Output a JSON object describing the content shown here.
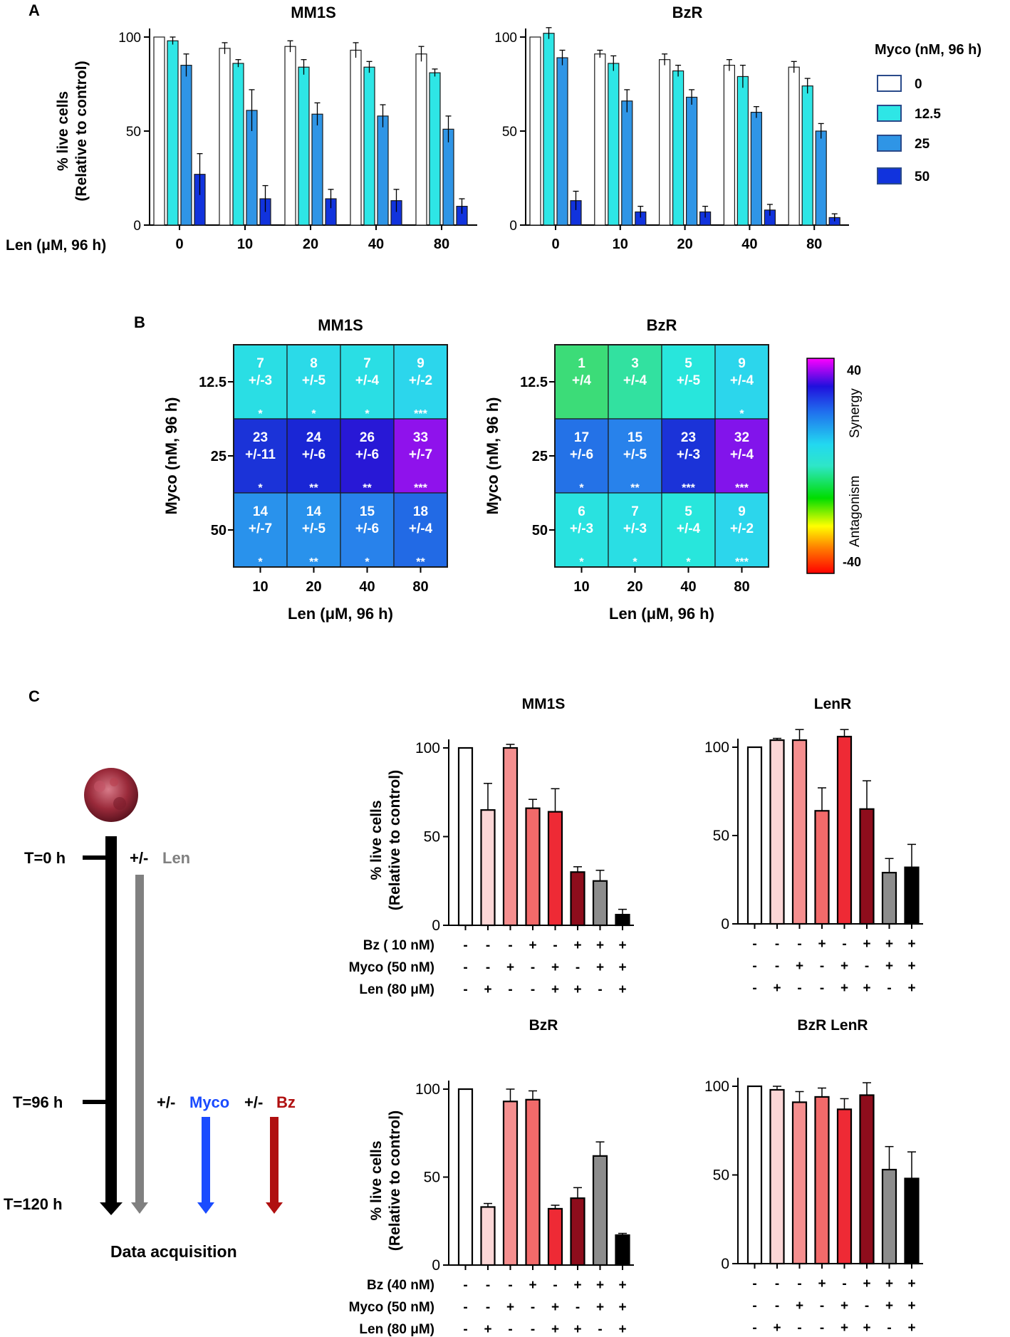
{
  "panel_labels": {
    "a": "A",
    "b": "B",
    "c": "C"
  },
  "colors": {
    "myco": [
      "#ffffff",
      "#2ee6e6",
      "#2f95e6",
      "#1133dd"
    ],
    "conditions": [
      "#ffffff",
      "#fbd6d6",
      "#f58f8f",
      "#f26a6a",
      "#ee2a35",
      "#8e0d1c",
      "#8c8c8c",
      "#000000"
    ],
    "arrow_len": "#808080",
    "arrow_myco": "#1a4bff",
    "arrow_bz": "#b01010",
    "text_len": "#808080",
    "text_myco": "#1a4bff",
    "text_bz": "#b01010"
  },
  "legend_a": {
    "title": "Myco (nM, 96 h)",
    "entries": [
      "0",
      "12.5",
      "25",
      "50"
    ]
  },
  "colorbar": {
    "max_label": "40",
    "min_label": "-40",
    "synergy_label": "Synergy",
    "antagonism_label": "Antagonism"
  },
  "timeline": {
    "t0": "T=0 h",
    "t96": "T=96 h",
    "t120": "T=120 h",
    "plusminus": "+/-",
    "len": "Len",
    "myco": "Myco",
    "bz": "Bz",
    "acquisition": "Data acquisition"
  },
  "chart_data": [
    {
      "id": "A-MM1S",
      "type": "bar",
      "title": "MM1S",
      "xlabel": "Len (μM, 96 h)",
      "ylabel": "% live cells",
      "ylabel2": "(Relative to control)",
      "ylim": [
        0,
        100
      ],
      "yticks": [
        0,
        50,
        100
      ],
      "categories": [
        "0",
        "10",
        "20",
        "40",
        "80"
      ],
      "series": [
        {
          "name": "0",
          "values": [
            100,
            94,
            95,
            93,
            91
          ],
          "errors": [
            0,
            3,
            3,
            4,
            4
          ]
        },
        {
          "name": "12.5",
          "values": [
            98,
            86,
            84,
            84,
            81
          ],
          "errors": [
            2,
            2,
            4,
            3,
            2
          ]
        },
        {
          "name": "25",
          "values": [
            85,
            61,
            59,
            58,
            51
          ],
          "errors": [
            6,
            11,
            6,
            6,
            7
          ]
        },
        {
          "name": "50",
          "values": [
            27,
            14,
            14,
            13,
            10
          ],
          "errors": [
            11,
            7,
            5,
            6,
            4
          ]
        }
      ]
    },
    {
      "id": "A-BzR",
      "type": "bar",
      "title": "BzR",
      "ylim": [
        0,
        100
      ],
      "yticks": [
        0,
        50,
        100
      ],
      "categories": [
        "0",
        "10",
        "20",
        "40",
        "80"
      ],
      "series": [
        {
          "name": "0",
          "values": [
            100,
            91,
            88,
            85,
            84
          ],
          "errors": [
            0,
            2,
            3,
            3,
            3
          ]
        },
        {
          "name": "12.5",
          "values": [
            102,
            86,
            82,
            79,
            74
          ],
          "errors": [
            3,
            4,
            3,
            6,
            4
          ]
        },
        {
          "name": "25",
          "values": [
            89,
            66,
            68,
            60,
            50
          ],
          "errors": [
            4,
            6,
            4,
            3,
            4
          ]
        },
        {
          "name": "50",
          "values": [
            13,
            7,
            7,
            8,
            4
          ],
          "errors": [
            5,
            3,
            3,
            3,
            2
          ]
        }
      ]
    },
    {
      "id": "B-MM1S",
      "type": "heatmap",
      "title": "MM1S",
      "xlabel": "Len (μM, 96 h)",
      "ylabel": "Myco (nM, 96 h)",
      "x": [
        "10",
        "20",
        "40",
        "80"
      ],
      "y": [
        "12.5",
        "25",
        "50"
      ],
      "range": [
        -40,
        40
      ],
      "cells": [
        [
          {
            "v": 7,
            "sd": "+/-3",
            "sig": "*"
          },
          {
            "v": 8,
            "sd": "+/-5",
            "sig": "*"
          },
          {
            "v": 7,
            "sd": "+/-4",
            "sig": "*"
          },
          {
            "v": 9,
            "sd": "+/-2",
            "sig": "***"
          }
        ],
        [
          {
            "v": 23,
            "sd": "+/-11",
            "sig": "*"
          },
          {
            "v": 24,
            "sd": "+/-6",
            "sig": "**"
          },
          {
            "v": 26,
            "sd": "+/-6",
            "sig": "**"
          },
          {
            "v": 33,
            "sd": "+/-7",
            "sig": "***"
          }
        ],
        [
          {
            "v": 14,
            "sd": "+/-7",
            "sig": "*"
          },
          {
            "v": 14,
            "sd": "+/-5",
            "sig": "**"
          },
          {
            "v": 15,
            "sd": "+/-6",
            "sig": "*"
          },
          {
            "v": 18,
            "sd": "+/-4",
            "sig": "**"
          }
        ]
      ]
    },
    {
      "id": "B-BzR",
      "type": "heatmap",
      "title": "BzR",
      "xlabel": "Len (μM, 96 h)",
      "ylabel": "Myco (nM, 96 h)",
      "x": [
        "10",
        "20",
        "40",
        "80"
      ],
      "y": [
        "12.5",
        "25",
        "50"
      ],
      "range": [
        -40,
        40
      ],
      "cells": [
        [
          {
            "v": 1,
            "sd": "+/4",
            "sig": ""
          },
          {
            "v": 3,
            "sd": "+/-4",
            "sig": ""
          },
          {
            "v": 5,
            "sd": "+/-5",
            "sig": ""
          },
          {
            "v": 9,
            "sd": "+/-4",
            "sig": "*"
          }
        ],
        [
          {
            "v": 17,
            "sd": "+/-6",
            "sig": "*"
          },
          {
            "v": 15,
            "sd": "+/-5",
            "sig": "**"
          },
          {
            "v": 23,
            "sd": "+/-3",
            "sig": "***"
          },
          {
            "v": 32,
            "sd": "+/-4",
            "sig": "***"
          }
        ],
        [
          {
            "v": 6,
            "sd": "+/-3",
            "sig": "*"
          },
          {
            "v": 7,
            "sd": "+/-3",
            "sig": "*"
          },
          {
            "v": 5,
            "sd": "+/-4",
            "sig": "*"
          },
          {
            "v": 9,
            "sd": "+/-2",
            "sig": "***"
          }
        ]
      ]
    },
    {
      "id": "C-MM1S",
      "type": "bar",
      "title": "MM1S",
      "ylabel": "% live cells",
      "ylabel2": "(Relative to control)",
      "ylim": [
        0,
        100
      ],
      "yticks": [
        0,
        50,
        100
      ],
      "values": [
        100,
        65,
        100,
        66,
        64,
        30,
        25,
        6
      ],
      "errors": [
        0,
        15,
        2,
        5,
        13,
        3,
        6,
        3
      ],
      "treatment_labels": [
        "Bz ( 10 nM)",
        "Myco (50 nM)",
        "Len (80 μM)"
      ],
      "treatments": [
        [
          "-",
          "-",
          "-",
          "+",
          "-",
          "+",
          "+",
          "+"
        ],
        [
          "-",
          "-",
          "+",
          "-",
          "+",
          "-",
          "+",
          "+"
        ],
        [
          "-",
          "+",
          "-",
          "-",
          "+",
          "+",
          "-",
          "+"
        ]
      ]
    },
    {
      "id": "C-LenR",
      "type": "bar",
      "title": "LenR",
      "ylim": [
        0,
        100
      ],
      "yticks": [
        0,
        50,
        100
      ],
      "values": [
        100,
        104,
        104,
        64,
        106,
        65,
        29,
        32
      ],
      "errors": [
        0,
        1,
        6,
        13,
        4,
        16,
        8,
        13
      ],
      "treatments": [
        [
          "-",
          "-",
          "-",
          "+",
          "-",
          "+",
          "+",
          "+"
        ],
        [
          "-",
          "-",
          "+",
          "-",
          "+",
          "-",
          "+",
          "+"
        ],
        [
          "-",
          "+",
          "-",
          "-",
          "+",
          "+",
          "-",
          "+"
        ]
      ]
    },
    {
      "id": "C-BzR",
      "type": "bar",
      "title": "BzR",
      "ylabel": "% live cells",
      "ylabel2": "(Relative to control)",
      "ylim": [
        0,
        100
      ],
      "yticks": [
        0,
        50,
        100
      ],
      "values": [
        100,
        33,
        93,
        94,
        32,
        38,
        62,
        17
      ],
      "errors": [
        0,
        2,
        7,
        5,
        2,
        6,
        8,
        1
      ],
      "treatment_labels": [
        "Bz (40 nM)",
        "Myco (50 nM)",
        "Len (80 μM)"
      ],
      "treatments": [
        [
          "-",
          "-",
          "-",
          "+",
          "-",
          "+",
          "+",
          "+"
        ],
        [
          "-",
          "-",
          "+",
          "-",
          "+",
          "-",
          "+",
          "+"
        ],
        [
          "-",
          "+",
          "-",
          "-",
          "+",
          "+",
          "-",
          "+"
        ]
      ]
    },
    {
      "id": "C-BzRLenR",
      "type": "bar",
      "title": "BzR LenR",
      "ylim": [
        0,
        100
      ],
      "yticks": [
        0,
        50,
        100
      ],
      "values": [
        100,
        98,
        91,
        94,
        87,
        95,
        53,
        48
      ],
      "errors": [
        0,
        2,
        6,
        5,
        6,
        7,
        13,
        15
      ],
      "treatments": [
        [
          "-",
          "-",
          "-",
          "+",
          "-",
          "+",
          "+",
          "+"
        ],
        [
          "-",
          "-",
          "+",
          "-",
          "+",
          "-",
          "+",
          "+"
        ],
        [
          "-",
          "+",
          "-",
          "-",
          "+",
          "+",
          "-",
          "+"
        ]
      ]
    }
  ]
}
